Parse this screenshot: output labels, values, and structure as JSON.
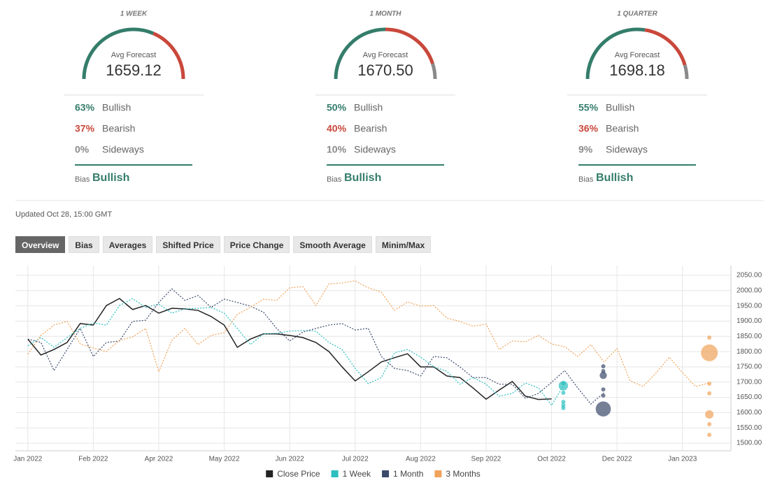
{
  "gauges": [
    {
      "period": "1 WEEK",
      "label": "Avg Forecast",
      "value": "1659.12",
      "rows": [
        {
          "pct": {
            "value": 63,
            "label": "63%"
          },
          "name": "Bullish"
        },
        {
          "pct": {
            "value": 37,
            "label": "37%"
          },
          "name": "Bearish"
        },
        {
          "pct": {
            "value": 0,
            "label": "0%"
          },
          "name": "Sideways"
        }
      ],
      "bias_label": "Bias",
      "bias": "Bullish"
    },
    {
      "period": "1 MONTH",
      "label": "Avg Forecast",
      "value": "1670.50",
      "rows": [
        {
          "pct": {
            "value": 50,
            "label": "50%"
          },
          "name": "Bullish"
        },
        {
          "pct": {
            "value": 40,
            "label": "40%"
          },
          "name": "Bearish"
        },
        {
          "pct": {
            "value": 10,
            "label": "10%"
          },
          "name": "Sideways"
        }
      ],
      "bias_label": "Bias",
      "bias": "Bullish"
    },
    {
      "period": "1 QUARTER",
      "label": "Avg Forecast",
      "value": "1698.18",
      "rows": [
        {
          "pct": {
            "value": 55,
            "label": "55%"
          },
          "name": "Bullish"
        },
        {
          "pct": {
            "value": 36,
            "label": "36%"
          },
          "name": "Bearish"
        },
        {
          "pct": {
            "value": 9,
            "label": "9%"
          },
          "name": "Sideways"
        }
      ],
      "bias_label": "Bias",
      "bias": "Bullish"
    }
  ],
  "updated": "Updated Oct 28, 15:00 GMT",
  "tabs": [
    "Overview",
    "Bias",
    "Averages",
    "Shifted Price",
    "Price Change",
    "Smooth Average",
    "Minim/Max"
  ],
  "chart_data": {
    "type": "line",
    "x": [
      0,
      0.2,
      0.4,
      0.6,
      0.8,
      1,
      1.2,
      1.4,
      1.6,
      1.8,
      2,
      2.2,
      2.4,
      2.6,
      2.8,
      3,
      3.2,
      3.4,
      3.6,
      3.8,
      4,
      4.2,
      4.4,
      4.6,
      4.8,
      5,
      5.2,
      5.4,
      5.6,
      5.8,
      6,
      6.2,
      6.4,
      6.6,
      6.8,
      7,
      7.2,
      7.4,
      7.6,
      7.8,
      8,
      8.2,
      8.4,
      8.6,
      8.8,
      9,
      9.2,
      9.4,
      9.6,
      9.8,
      10,
      10.2,
      10.4
    ],
    "xlim": [
      -0.19,
      10.74
    ],
    "xticks": [
      {
        "value": 0,
        "label": "Jan 2022"
      },
      {
        "value": 1,
        "label": "Feb 2022"
      },
      {
        "value": 2,
        "label": "Apr 2022"
      },
      {
        "value": 3,
        "label": "May 2022"
      },
      {
        "value": 4,
        "label": "Jun 2022"
      },
      {
        "value": 5,
        "label": "Jul 2022"
      },
      {
        "value": 6,
        "label": "Aug 2022"
      },
      {
        "value": 7,
        "label": "Sep 2022"
      },
      {
        "value": 8,
        "label": "Oct 2022"
      },
      {
        "value": 9,
        "label": "Dec 2022"
      },
      {
        "value": 10,
        "label": "Jan 2023"
      }
    ],
    "ylim": [
      1475,
      2082
    ],
    "yticks": [
      {
        "value": 1500,
        "label": "1500.00"
      },
      {
        "value": 1550,
        "label": "1550.00"
      },
      {
        "value": 1600,
        "label": "1600.00"
      },
      {
        "value": 1650,
        "label": "1650.00"
      },
      {
        "value": 1700,
        "label": "1700.00"
      },
      {
        "value": 1750,
        "label": "1750.00"
      },
      {
        "value": 1800,
        "label": "1800.00"
      },
      {
        "value": 1850,
        "label": "1850.00"
      },
      {
        "value": 1900,
        "label": "1900.00"
      },
      {
        "value": 1950,
        "label": "1950.00"
      },
      {
        "value": 2000,
        "label": "2000.00"
      },
      {
        "value": 2050,
        "label": "2050.00"
      }
    ],
    "grid": true,
    "legend": "bottom",
    "series": [
      {
        "name": "Close Price",
        "color": "#222222",
        "dashed": false,
        "values": [
          1841,
          1789,
          1807,
          1830,
          1892,
          1887,
          1951,
          1974,
          1938,
          1951,
          1926,
          1942,
          1940,
          1935,
          1915,
          1887,
          1814,
          1841,
          1858,
          1858,
          1853,
          1846,
          1830,
          1800,
          1750,
          1704,
          1734,
          1766,
          1780,
          1793,
          1750,
          1750,
          1720,
          1715,
          1681,
          1644,
          1674,
          1702,
          1654,
          1643,
          1645,
          null,
          null,
          null,
          null,
          null,
          null,
          null,
          null,
          null,
          null,
          null,
          null
        ]
      },
      {
        "name": "1 Week",
        "color": "#2bbfbf",
        "dashed": true,
        "values": [
          1819,
          1846,
          1814,
          1846,
          1876,
          1894,
          1887,
          1951,
          1974,
          1945,
          1956,
          1926,
          1940,
          1942,
          1945,
          1926,
          1876,
          1823,
          1858,
          1860,
          1867,
          1869,
          1867,
          1830,
          1807,
          1745,
          1695,
          1715,
          1796,
          1807,
          1782,
          1750,
          1736,
          1693,
          1715,
          1693,
          1654,
          1663,
          1697,
          1681,
          1624,
          1695,
          null,
          null,
          null,
          null,
          null,
          null,
          null,
          null,
          null,
          null,
          null
        ],
        "forecast_x": 8.18,
        "forecast_values": [
          1697,
          1688,
          1665,
          1635,
          1624,
          1615
        ],
        "forecast_sizes": [
          1,
          5,
          1,
          1,
          1,
          1
        ]
      },
      {
        "name": "1 Month",
        "color": "#3a4a6b",
        "dashed": true,
        "values": [
          1841,
          1830,
          1738,
          1807,
          1876,
          1784,
          1830,
          1835,
          1899,
          1903,
          1961,
          2006,
          1968,
          1984,
          1945,
          1972,
          1961,
          1949,
          1929,
          1876,
          1835,
          1864,
          1876,
          1887,
          1892,
          1871,
          1876,
          1784,
          1745,
          1738,
          1720,
          1784,
          1780,
          1750,
          1715,
          1715,
          1693,
          1693,
          1647,
          1663,
          1699,
          1738,
          1681,
          1628,
          1665,
          null,
          null,
          null,
          null,
          null,
          null,
          null,
          null
        ],
        "forecast_x": 8.79,
        "forecast_values": [
          1752,
          1736,
          1722,
          1676,
          1656,
          1612
        ],
        "forecast_sizes": [
          1,
          1,
          3,
          1,
          1,
          13
        ]
      },
      {
        "name": "3 Months",
        "color": "#f0a35a",
        "dashed": true,
        "values": [
          1791,
          1853,
          1887,
          1899,
          1825,
          1812,
          1800,
          1837,
          1848,
          1876,
          1734,
          1837,
          1876,
          1823,
          1853,
          1862,
          1922,
          1945,
          1972,
          1968,
          2009,
          2013,
          1951,
          2022,
          2025,
          2032,
          2009,
          1995,
          1935,
          1963,
          1949,
          1951,
          1910,
          1899,
          1883,
          1890,
          1807,
          1835,
          1832,
          1853,
          1825,
          1816,
          1784,
          1823,
          1766,
          1810,
          1704,
          1686,
          1731,
          1782,
          1731,
          1686,
          1697
        ],
        "forecast_x": 10.41,
        "forecast_values": [
          1846,
          1796,
          1695,
          1663,
          1594,
          1562,
          1527
        ],
        "forecast_sizes": [
          1,
          16,
          1,
          1,
          4,
          1,
          1
        ]
      }
    ]
  }
}
